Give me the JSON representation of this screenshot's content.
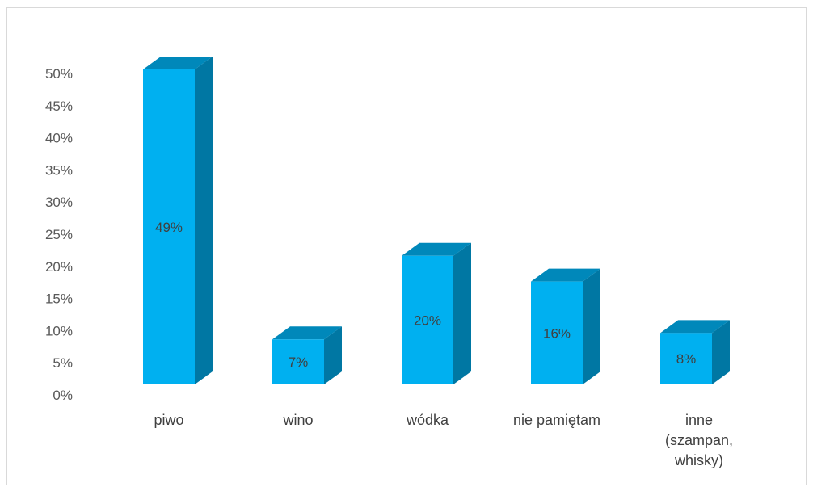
{
  "chart_data": {
    "type": "bar",
    "style": "3d-column",
    "categories": [
      "piwo",
      "wino",
      "wódka",
      "nie pamiętam",
      "inne (szampan, whisky)"
    ],
    "category_lines": [
      [
        "piwo"
      ],
      [
        "wino"
      ],
      [
        "wódka"
      ],
      [
        "nie pamiętam"
      ],
      [
        "inne",
        "(szampan,",
        "whisky)"
      ]
    ],
    "values": [
      49,
      7,
      20,
      16,
      8
    ],
    "data_labels": [
      "49%",
      "7%",
      "20%",
      "16%",
      "8%"
    ],
    "ylim": [
      0,
      50
    ],
    "y_ticks": [
      "0%",
      "5%",
      "10%",
      "15%",
      "20%",
      "25%",
      "30%",
      "35%",
      "40%",
      "45%",
      "50%"
    ],
    "grid": false,
    "legend": "none",
    "colors": {
      "front": "#00b0f0",
      "side": "#0077a3",
      "top": "#0088ba"
    }
  }
}
